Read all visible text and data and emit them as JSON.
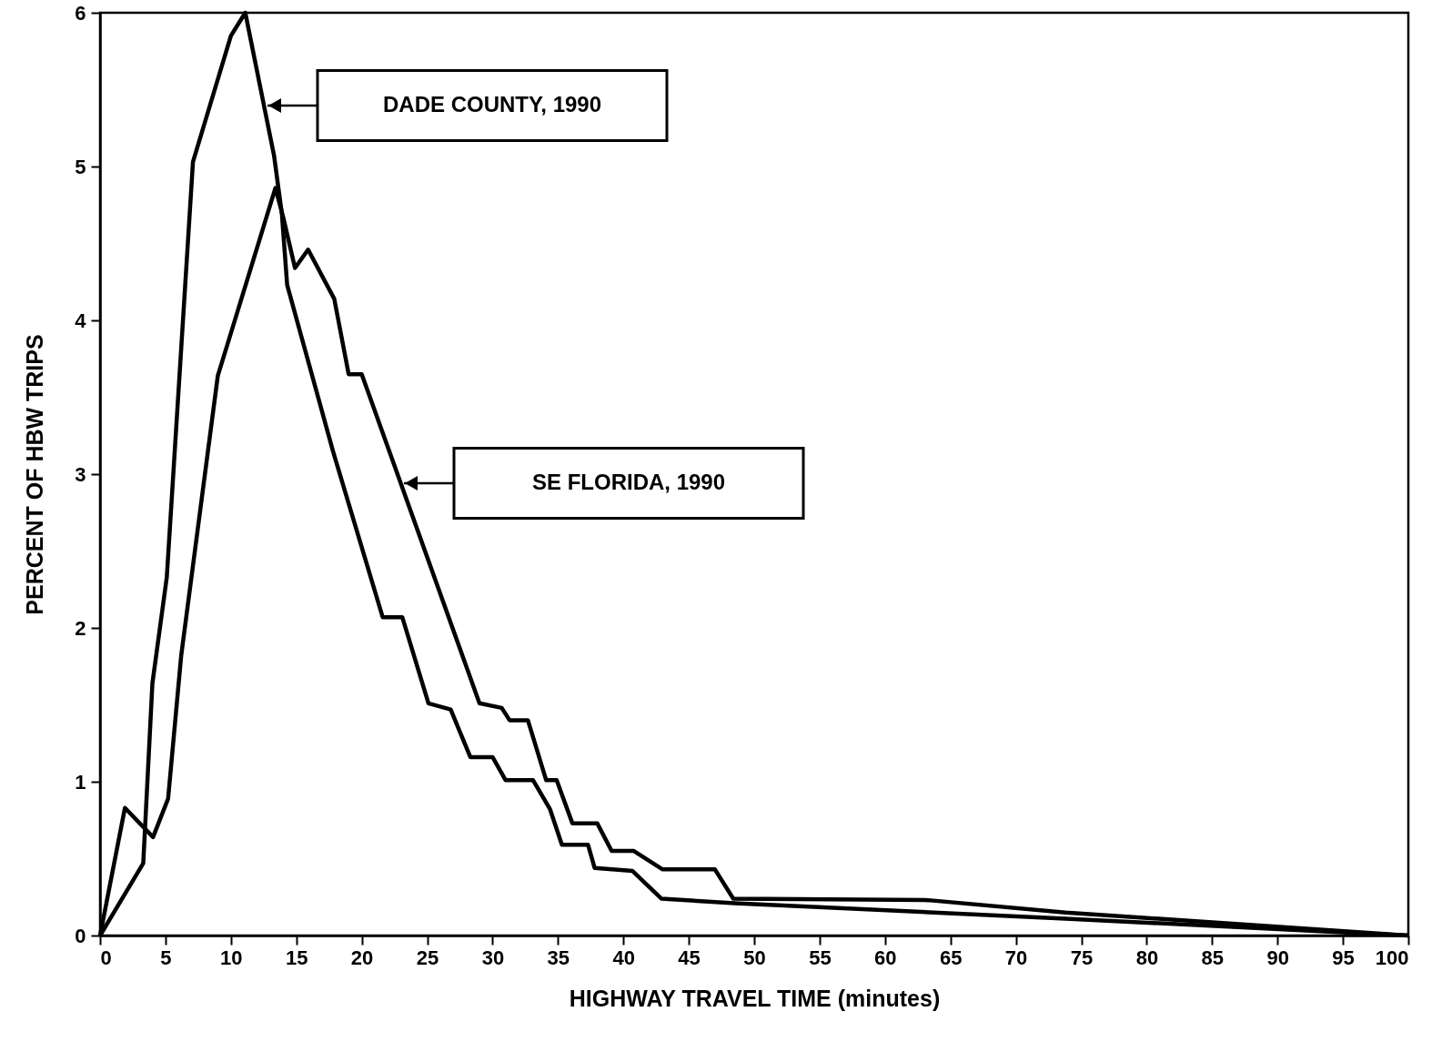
{
  "chart_data": {
    "type": "line",
    "xlabel": "HIGHWAY TRAVEL TIME (minutes)",
    "ylabel": "PERCENT OF HBW TRIPS",
    "xlim": [
      0,
      100
    ],
    "ylim": [
      0,
      6
    ],
    "xticks": [
      0,
      5,
      10,
      15,
      20,
      25,
      30,
      35,
      40,
      45,
      50,
      55,
      60,
      65,
      70,
      75,
      80,
      85,
      90,
      95,
      100
    ],
    "yticks": [
      0,
      1,
      2,
      3,
      4,
      5,
      6
    ],
    "grid": false,
    "line_style": "solid",
    "series": [
      {
        "color": "#000000",
        "x": [
          0,
          3.3,
          4.0,
          5.1,
          7.1,
          10.0,
          11.1,
          13.3,
          13.9,
          14.3,
          17.8,
          21.6,
          23.1,
          25.1,
          26.8,
          28.3,
          30.0,
          31.0,
          33.1,
          34.4,
          35.3,
          37.3,
          37.8,
          40.7,
          42.9,
          48.5,
          73.8,
          100
        ],
        "values": [
          0,
          0.47,
          1.64,
          2.33,
          5.03,
          5.85,
          6.0,
          5.07,
          4.69,
          4.23,
          3.15,
          2.07,
          2.07,
          1.51,
          1.47,
          1.16,
          1.16,
          1.01,
          1.01,
          0.82,
          0.59,
          0.59,
          0.44,
          0.42,
          0.24,
          0.21,
          0.11,
          0
        ]
      },
      {
        "color": "#000000",
        "x": [
          0,
          1.9,
          4.05,
          5.2,
          6.2,
          9.0,
          13.4,
          14.0,
          14.9,
          15.9,
          17.9,
          19.0,
          20.0,
          29.0,
          30.7,
          31.3,
          32.7,
          34.1,
          34.9,
          36.1,
          38.0,
          39.1,
          40.8,
          43.0,
          47.0,
          48.4,
          63.3,
          73.8,
          100
        ],
        "values": [
          0,
          0.83,
          0.64,
          0.89,
          1.82,
          3.64,
          4.86,
          4.67,
          4.34,
          4.46,
          4.14,
          3.65,
          3.65,
          1.51,
          1.48,
          1.4,
          1.4,
          1.01,
          1.01,
          0.73,
          0.73,
          0.55,
          0.55,
          0.43,
          0.43,
          0.24,
          0.23,
          0.15,
          0
        ]
      }
    ],
    "annotations": [
      "DADE COUNTY, 1990",
      "SE FLORIDA, 1990"
    ]
  }
}
